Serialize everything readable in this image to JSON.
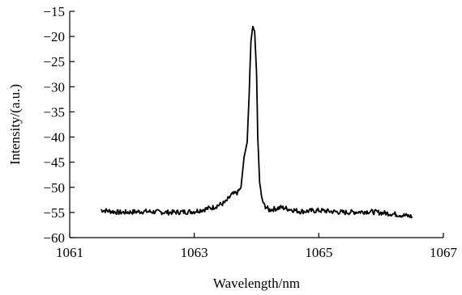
{
  "chart_data": {
    "type": "line",
    "xlabel": "Wavelength/nm",
    "ylabel": "Intensity/(a.u.)",
    "xlim": [
      1061,
      1067
    ],
    "ylim": [
      -60,
      -15
    ],
    "xticks": [
      1061,
      1063,
      1065,
      1067
    ],
    "yticks": [
      -15,
      -20,
      -25,
      -30,
      -35,
      -40,
      -45,
      -50,
      -55,
      -60
    ],
    "grid": false,
    "legend": "none",
    "series": [
      {
        "color": "#000000",
        "x": [
          1061.5,
          1061.8,
          1062.2,
          1062.6,
          1063.0,
          1063.3,
          1063.5,
          1063.6,
          1063.7,
          1063.75,
          1063.8,
          1063.85,
          1063.88,
          1063.91,
          1063.94,
          1063.97,
          1064.0,
          1064.02,
          1064.05,
          1064.08,
          1064.12,
          1064.2,
          1064.4,
          1064.7,
          1065.0,
          1065.4,
          1065.8,
          1066.2,
          1066.5
        ],
        "y": [
          -54.5,
          -55.0,
          -54.8,
          -55.0,
          -54.8,
          -54.0,
          -53.0,
          -51.5,
          -51.0,
          -50.0,
          -44.0,
          -41.0,
          -32.0,
          -21.0,
          -18.0,
          -19.0,
          -27.0,
          -40.0,
          -49.0,
          -52.0,
          -53.5,
          -54.5,
          -54.0,
          -54.8,
          -54.6,
          -55.0,
          -54.8,
          -55.3,
          -55.8
        ]
      }
    ]
  }
}
